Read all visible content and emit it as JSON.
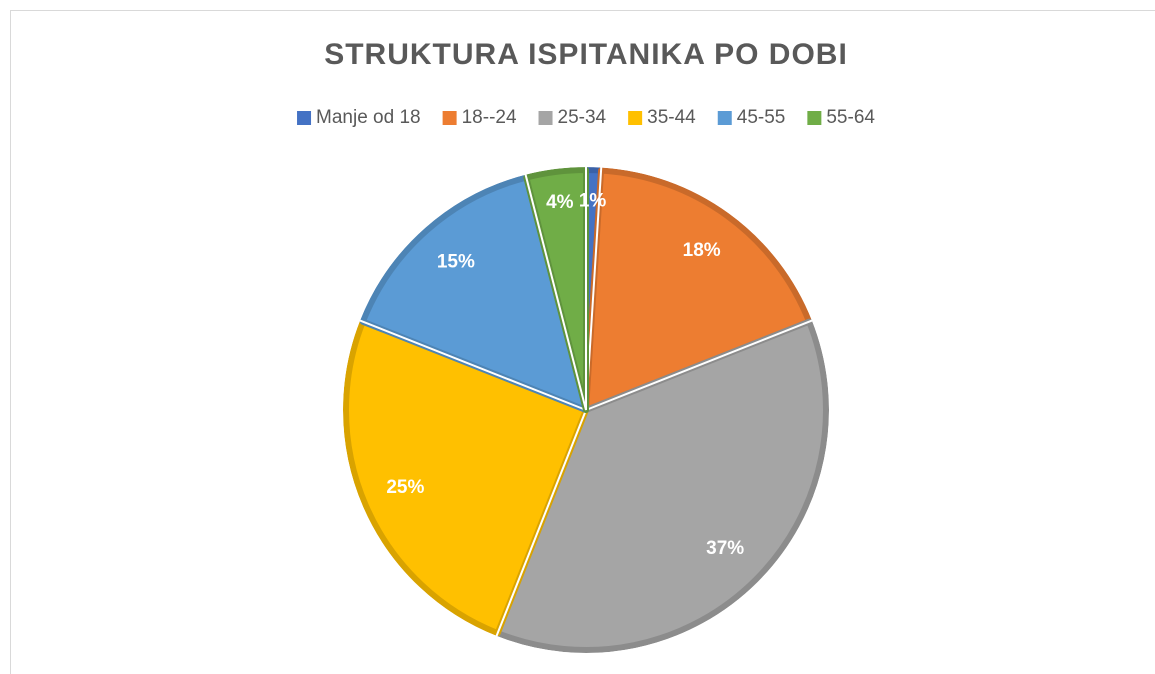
{
  "chart_data": {
    "type": "pie",
    "title": "STRUKTURA ISPITANIKA PO DOBI",
    "categories": [
      "Manje od 18",
      "18--24",
      "25-34",
      "35-44",
      "45-55",
      "55-64"
    ],
    "values": [
      1,
      18,
      37,
      25,
      15,
      4
    ],
    "value_labels": [
      "1%",
      "18%",
      "37%",
      "25%",
      "15%",
      "4%"
    ],
    "colors": [
      "#4472c4",
      "#ed7d31",
      "#a5a5a5",
      "#ffc000",
      "#5b9bd5",
      "#70ad47"
    ],
    "legend": "top"
  }
}
